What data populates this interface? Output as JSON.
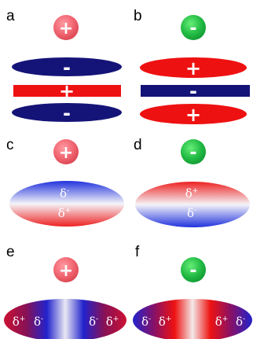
{
  "panels": [
    {
      "letter": "a",
      "ion_sign": "+",
      "ion_color": "#f06470",
      "bands": [
        {
          "color": "#141478",
          "sign": "-"
        },
        {
          "color": "#ee1111",
          "sign": "+"
        },
        {
          "color": "#141478",
          "sign": "-"
        }
      ]
    },
    {
      "letter": "b",
      "ion_sign": "-",
      "ion_color": "#22bb44",
      "bands": [
        {
          "color": "#ee1111",
          "sign": "+"
        },
        {
          "color": "#141478",
          "sign": "-"
        },
        {
          "color": "#ee1111",
          "sign": "+"
        }
      ]
    },
    {
      "letter": "c",
      "ion_sign": "+",
      "ion_color": "#f06470",
      "dipole": {
        "top": "δ",
        "top_sup": "-",
        "bottom": "δ",
        "bottom_sup": "+",
        "top_color": "#2233dd",
        "bottom_color": "#ee2222"
      }
    },
    {
      "letter": "d",
      "ion_sign": "-",
      "ion_color": "#22bb44",
      "dipole": {
        "top": "δ",
        "top_sup": "+",
        "bottom": "δ",
        "bottom_sup": "-",
        "top_color": "#ee2222",
        "bottom_color": "#2233dd"
      }
    },
    {
      "letter": "e",
      "ion_sign": "+",
      "ion_color": "#f06470",
      "quad": {
        "labels": [
          {
            "t": "δ",
            "s": "+"
          },
          {
            "t": "δ",
            "s": "-"
          },
          {
            "t": "δ",
            "s": "-"
          },
          {
            "t": "δ",
            "s": "+"
          }
        ],
        "end_color": "#cc1133",
        "mid_color": "#2222cc"
      }
    },
    {
      "letter": "f",
      "ion_sign": "-",
      "ion_color": "#22bb44",
      "quad": {
        "labels": [
          {
            "t": "δ",
            "s": "-"
          },
          {
            "t": "δ",
            "s": "+"
          },
          {
            "t": "δ",
            "s": "+"
          },
          {
            "t": "δ",
            "s": "-"
          }
        ],
        "end_color": "#2222cc",
        "mid_color": "#ee1111"
      }
    }
  ]
}
